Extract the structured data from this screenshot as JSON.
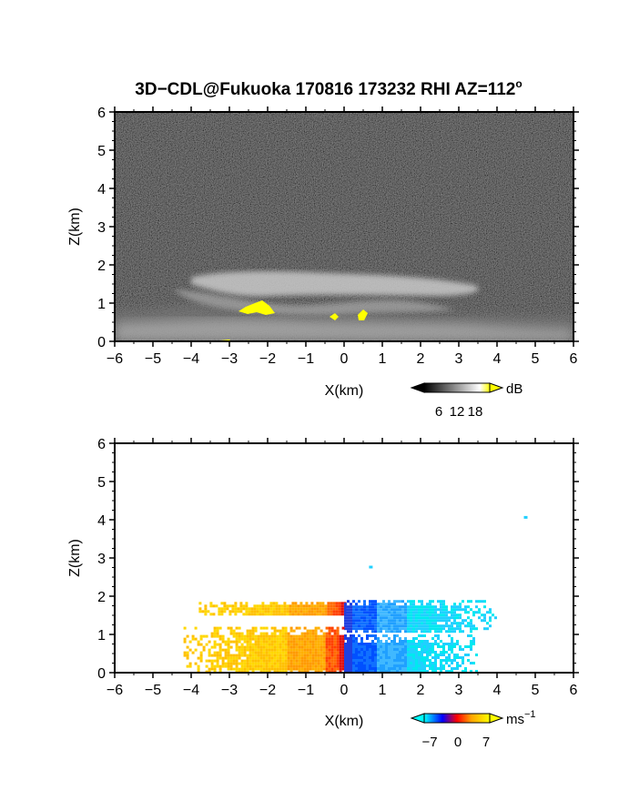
{
  "chart_data": [
    {
      "type": "heatmap",
      "title": "3D−CDL@Fukuoka 170816 173232 RHI AZ=112",
      "title_superscript": "o",
      "xlabel": "X(km)",
      "ylabel": "Z(km)",
      "xlim": [
        -6,
        6
      ],
      "ylim": [
        0,
        6
      ],
      "xticks": [
        "−6",
        "−5",
        "−4",
        "−3",
        "−2",
        "−1",
        "0",
        "1",
        "2",
        "3",
        "4",
        "5",
        "6"
      ],
      "yticks": [
        "0",
        "1",
        "2",
        "3",
        "4",
        "5",
        "6"
      ],
      "colorscale": "grayscale with yellow top",
      "colorbar": {
        "unit": "dB",
        "ticks": [
          "6",
          "12",
          "18"
        ],
        "colors": [
          "#000000",
          "#ffffff",
          "#ffff00"
        ]
      },
      "features": [
        {
          "name": "elevated aerosol layer",
          "x_range": [
            -4,
            4.2
          ],
          "z_range": [
            1.1,
            1.8
          ]
        },
        {
          "name": "boundary layer echo",
          "x_range": [
            -6,
            6
          ],
          "z_range": [
            0,
            0.9
          ]
        },
        {
          "name": "yellow high echo",
          "x_range": [
            -2.9,
            -1.8
          ],
          "z_range": [
            0.75,
            1.15
          ]
        },
        {
          "name": "yellow high echo",
          "x_range": [
            -0.3,
            0.6
          ],
          "z_range": [
            0.55,
            0.85
          ]
        }
      ]
    },
    {
      "type": "heatmap",
      "title": "",
      "xlabel": "X(km)",
      "ylabel": "Z(km)",
      "xlim": [
        -6,
        6
      ],
      "ylim": [
        0,
        6
      ],
      "xticks": [
        "−6",
        "−5",
        "−4",
        "−3",
        "−2",
        "−1",
        "0",
        "1",
        "2",
        "3",
        "4",
        "5",
        "6"
      ],
      "yticks": [
        "0",
        "1",
        "2",
        "3",
        "4",
        "5",
        "6"
      ],
      "colorscale": "cyan-blue-red-orange-yellow diverging",
      "colorbar": {
        "unit": "ms",
        "unit_exponent": "−1",
        "ticks": [
          "−7",
          "0",
          "7"
        ],
        "colors": [
          "#00ffff",
          "#0000ff",
          "#ff0000",
          "#ffa500",
          "#ffff00"
        ]
      },
      "features": [
        {
          "name": "upper layer positive velocity",
          "x_range": [
            -3.8,
            0
          ],
          "z_range": [
            1.5,
            1.85
          ],
          "velocity": 5
        },
        {
          "name": "upper layer negative velocity",
          "x_range": [
            0,
            4
          ],
          "z_range": [
            1.1,
            1.9
          ],
          "velocity": -5
        },
        {
          "name": "lower layer positive velocity",
          "x_range": [
            -4.2,
            0
          ],
          "z_range": [
            0,
            1.2
          ],
          "velocity": 5
        },
        {
          "name": "lower layer negative velocity",
          "x_range": [
            0,
            3.5
          ],
          "z_range": [
            0,
            1.0
          ],
          "velocity": -5
        },
        {
          "name": "isolated point",
          "x": 4.75,
          "z": 4.05,
          "velocity": -7
        },
        {
          "name": "isolated point",
          "x": 0.7,
          "z": 2.75,
          "velocity": -7
        }
      ]
    }
  ]
}
